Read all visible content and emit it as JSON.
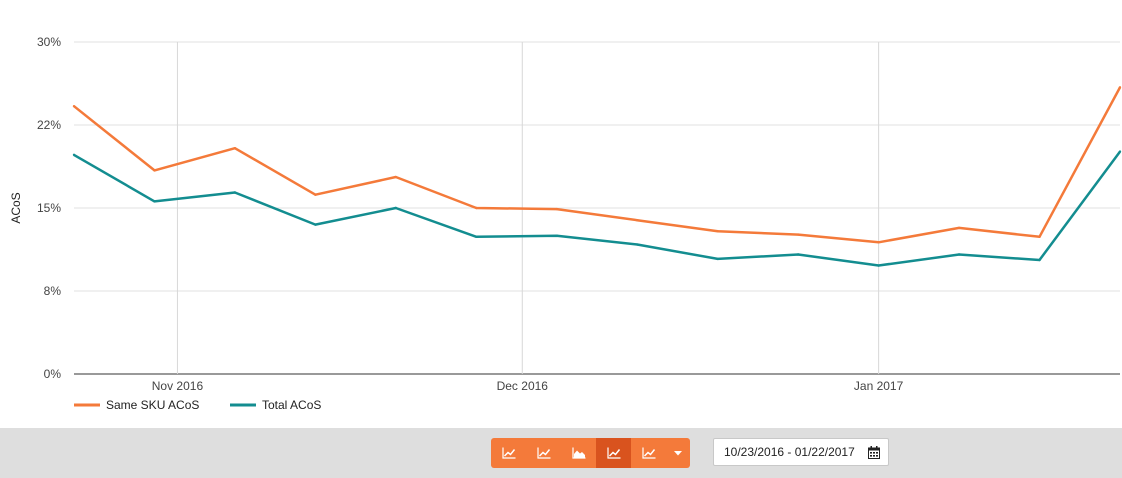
{
  "chart_data": {
    "type": "line",
    "ylabel": "ACoS",
    "y_ticks": [
      "0%",
      "8%",
      "15%",
      "22%",
      "30%"
    ],
    "ylim": [
      0,
      30
    ],
    "x_ticks": [
      {
        "label": "Nov 2016",
        "date": "2016-11-01"
      },
      {
        "label": "Dec 2016",
        "date": "2016-12-01"
      },
      {
        "label": "Jan 2017",
        "date": "2017-01-01"
      }
    ],
    "x_range": [
      "2016-10-23",
      "2017-01-22"
    ],
    "grid": true,
    "legend": "bottom-left",
    "x": [
      "2016-10-23",
      "2016-10-30",
      "2016-11-06",
      "2016-11-13",
      "2016-11-20",
      "2016-11-27",
      "2016-12-04",
      "2016-12-11",
      "2016-12-18",
      "2016-12-25",
      "2017-01-01",
      "2017-01-08",
      "2017-01-15",
      "2017-01-22"
    ],
    "series": [
      {
        "name": "Same SKU ACoS",
        "color": "#f47a3a",
        "values": [
          24.2,
          18.4,
          20.4,
          16.2,
          17.8,
          15.0,
          14.9,
          13.9,
          12.9,
          12.6,
          11.9,
          13.2,
          12.4,
          25.9
        ]
      },
      {
        "name": "Total ACoS",
        "color": "#138d90",
        "values": [
          19.8,
          15.6,
          16.4,
          13.5,
          15.0,
          12.4,
          12.5,
          11.7,
          10.4,
          10.8,
          9.8,
          10.8,
          10.3,
          20.1
        ]
      }
    ]
  },
  "toolbar": {
    "buttons": [
      {
        "icon": "line-chart-icon",
        "active": false
      },
      {
        "icon": "line-chart-icon",
        "active": false
      },
      {
        "icon": "area-chart-icon",
        "active": false
      },
      {
        "icon": "line-chart-icon",
        "active": true
      },
      {
        "icon": "line-chart-icon",
        "active": false
      }
    ],
    "dropdown_icon": "caret-down-icon",
    "date_range": "10/23/2016 - 01/22/2017",
    "calendar_icon": "calendar-icon"
  },
  "colors": {
    "accent": "#f47a3a",
    "accent_active": "#d9531e",
    "toolbar_bg": "#dedede"
  }
}
